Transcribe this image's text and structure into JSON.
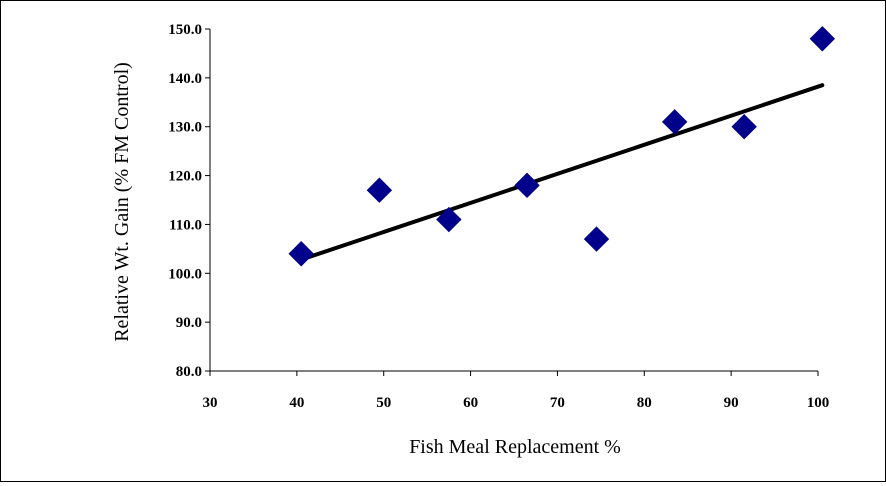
{
  "chart_data": {
    "type": "scatter",
    "title": "",
    "xlabel": "Fish Meal Replacement %",
    "ylabel": "Relative Wt. Gain (% FM Control)",
    "xlim": [
      30,
      100
    ],
    "ylim": [
      80,
      150
    ],
    "x_ticks": [
      "30",
      "40",
      "50",
      "60",
      "70",
      "80",
      "90",
      "100"
    ],
    "y_ticks": [
      "80.0",
      "90.0",
      "100.0",
      "110.0",
      "120.0",
      "130.0",
      "140.0",
      "150.0"
    ],
    "grid": false,
    "legend": "none",
    "marker": "diamond",
    "marker_color": "#00008B",
    "trendline_color": "#000000",
    "series": [
      {
        "x": [
          40.5,
          49.5,
          57.5,
          66.5,
          74.5,
          83.5,
          91.5,
          100.5
        ],
        "y": [
          104,
          117,
          111,
          118,
          107,
          131,
          130,
          148
        ]
      }
    ],
    "trendline": {
      "type": "linear",
      "x": [
        40.5,
        100.5
      ],
      "y": [
        102.8,
        138.5
      ]
    }
  }
}
